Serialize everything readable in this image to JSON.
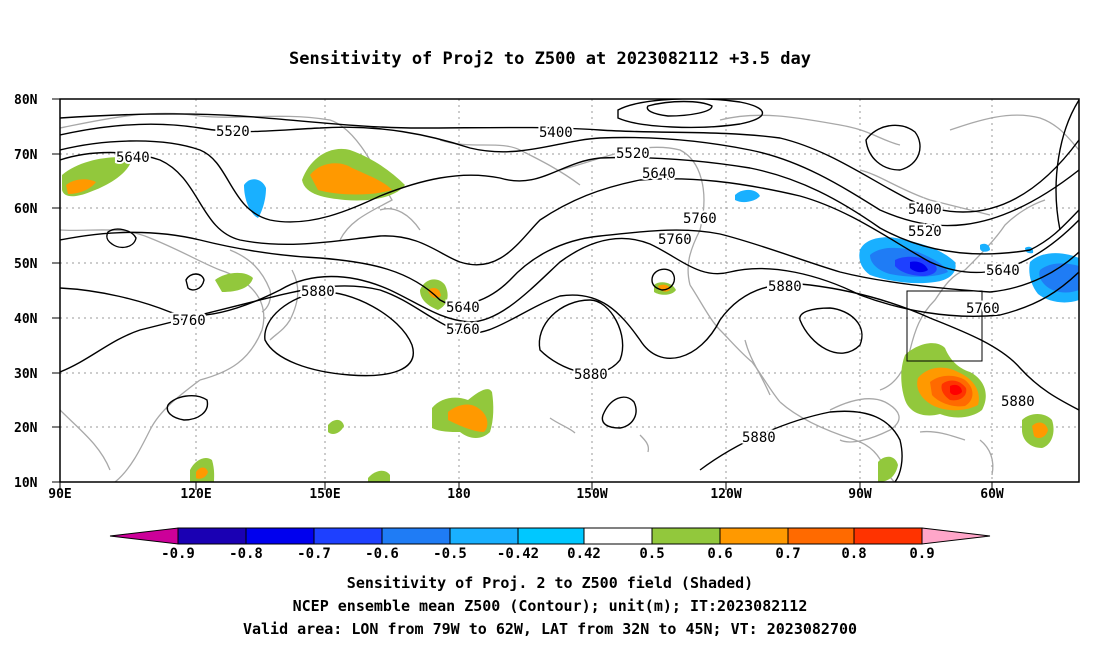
{
  "title": "Sensitivity of Proj2 to Z500 at 2023082112 +3.5 day",
  "axes": {
    "lat_labels": [
      "80N",
      "70N",
      "60N",
      "50N",
      "40N",
      "30N",
      "20N",
      "10N"
    ],
    "lon_labels": [
      "90E",
      "120E",
      "150E",
      "180",
      "150W",
      "120W",
      "90W",
      "60W"
    ]
  },
  "contour_labels": [
    "5520",
    "5400",
    "5520",
    "5640",
    "5640",
    "5400",
    "5520",
    "5760",
    "5760",
    "5640",
    "5880",
    "5640",
    "5760",
    "5760",
    "5880",
    "5760",
    "5880",
    "5880",
    "5880"
  ],
  "colorbar": {
    "labels": [
      "-0.9",
      "-0.8",
      "-0.7",
      "-0.6",
      "-0.5",
      "-0.42",
      "0.42",
      "0.5",
      "0.6",
      "0.7",
      "0.8",
      "0.9"
    ],
    "colors": [
      "#cc0099",
      "#1a00b3",
      "#0000ee",
      "#1e40ff",
      "#1f7cf5",
      "#19b0ff",
      "#00c8ff",
      "#ffffff",
      "#92c83c",
      "#ff9900",
      "#ff6a00",
      "#ff3300",
      "#ff0000",
      "#ffa6c9"
    ]
  },
  "captions": {
    "line1": "Sensitivity of Proj. 2 to Z500 field (Shaded)",
    "line2": "NCEP ensemble mean Z500 (Contour); unit(m); IT:2023082112",
    "line3": "Valid area: LON from 79W to 62W, LAT from 32N to 45N; VT: 2023082700"
  }
}
